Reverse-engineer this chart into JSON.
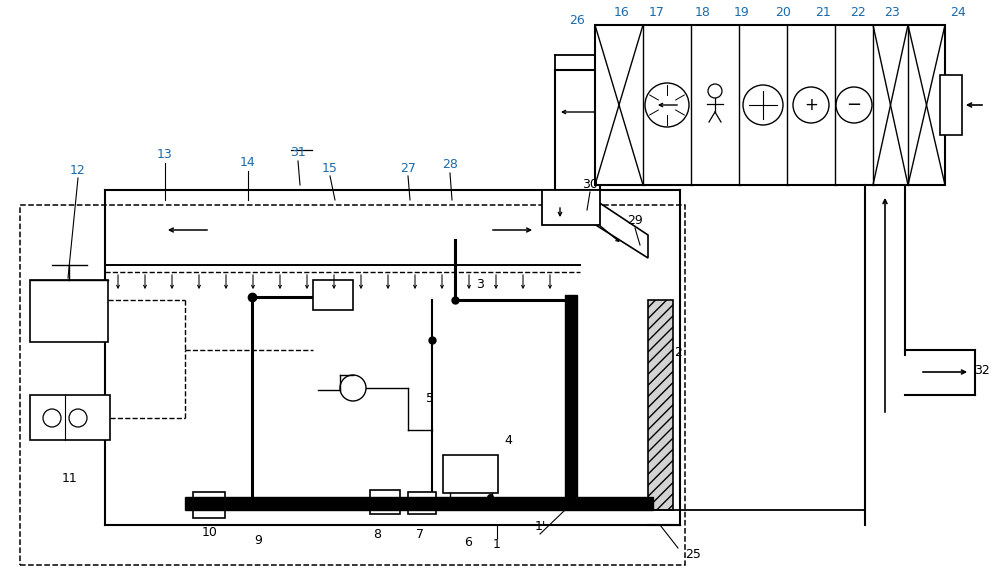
{
  "bg_color": "#ffffff",
  "label_color": "#1a6aad",
  "fig_width": 10.0,
  "fig_height": 5.75,
  "dpi": 100
}
